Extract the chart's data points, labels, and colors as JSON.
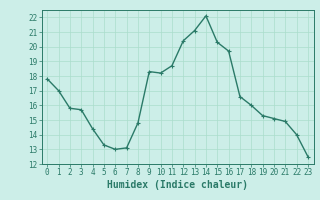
{
  "x": [
    0,
    1,
    2,
    3,
    4,
    5,
    6,
    7,
    8,
    9,
    10,
    11,
    12,
    13,
    14,
    15,
    16,
    17,
    18,
    19,
    20,
    21,
    22,
    23
  ],
  "y": [
    17.8,
    17.0,
    15.8,
    15.7,
    14.4,
    13.3,
    13.0,
    13.1,
    14.8,
    18.3,
    18.2,
    18.7,
    20.4,
    21.1,
    22.1,
    20.3,
    19.7,
    16.6,
    16.0,
    15.3,
    15.1,
    14.9,
    14.0,
    12.5
  ],
  "line_color": "#2a7a68",
  "marker": "+",
  "marker_size": 3.5,
  "bg_color": "#cceee8",
  "grid_color": "#aaddcc",
  "xlabel": "Humidex (Indice chaleur)",
  "ylim": [
    12,
    22.5
  ],
  "xlim": [
    -0.5,
    23.5
  ],
  "yticks": [
    12,
    13,
    14,
    15,
    16,
    17,
    18,
    19,
    20,
    21,
    22
  ],
  "xticks": [
    0,
    1,
    2,
    3,
    4,
    5,
    6,
    7,
    8,
    9,
    10,
    11,
    12,
    13,
    14,
    15,
    16,
    17,
    18,
    19,
    20,
    21,
    22,
    23
  ],
  "tick_label_fontsize": 5.5,
  "xlabel_fontsize": 7.0,
  "line_width": 1.0
}
